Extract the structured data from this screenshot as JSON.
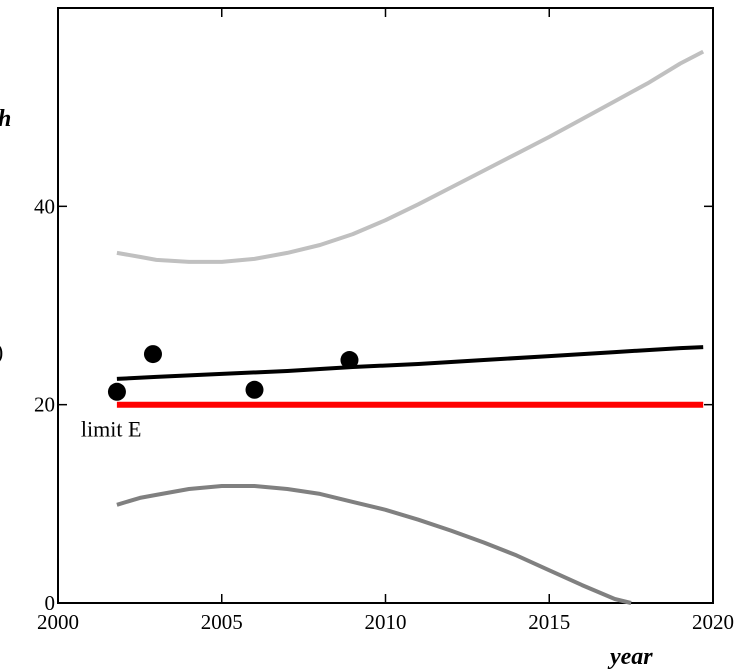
{
  "chart_data": {
    "type": "line",
    "xlabel": "year",
    "ylabel_fragment": "h",
    "ylabel_fragment2": ")",
    "xlim": [
      2000,
      2020
    ],
    "ylim": [
      0,
      60
    ],
    "x_ticks": [
      "2000",
      "2005",
      "2010",
      "2015",
      "2020"
    ],
    "x_tick_values": [
      2000,
      2005,
      2010,
      2015,
      2020
    ],
    "y_ticks": [
      "0",
      "20",
      "40"
    ],
    "y_tick_values": [
      0,
      20,
      40
    ],
    "grid": false,
    "annotation": "limit E",
    "annotation_at": [
      2000.7,
      16.8
    ],
    "colors": {
      "upper": "#c0c0c0",
      "trend": "#000000",
      "lower": "#808080",
      "limit": "#ff0000",
      "points": "#000000",
      "axes": "#000000"
    },
    "series": [
      {
        "key": "upper",
        "x": [
          2001.8,
          2002.5,
          2003,
          2004,
          2005,
          2006,
          2007,
          2008,
          2009,
          2010,
          2011,
          2012,
          2013,
          2014,
          2015,
          2016,
          2017,
          2018,
          2019,
          2019.7
        ],
        "y": [
          35.3,
          34.9,
          34.6,
          34.4,
          34.4,
          34.7,
          35.3,
          36.1,
          37.2,
          38.6,
          40.2,
          41.9,
          43.6,
          45.3,
          47.0,
          48.8,
          50.6,
          52.4,
          54.4,
          55.6
        ]
      },
      {
        "key": "trend",
        "x": [
          2001.8,
          2003,
          2005,
          2007,
          2009,
          2011,
          2013,
          2015,
          2017,
          2019,
          2019.7
        ],
        "y": [
          22.6,
          22.8,
          23.1,
          23.4,
          23.8,
          24.1,
          24.5,
          24.9,
          25.3,
          25.7,
          25.8
        ]
      },
      {
        "key": "lower",
        "x": [
          2001.8,
          2002.5,
          2003,
          2004,
          2005,
          2006,
          2007,
          2008,
          2009,
          2010,
          2011,
          2012,
          2013,
          2014,
          2015,
          2016,
          2017,
          2017.5
        ],
        "y": [
          9.9,
          10.6,
          10.9,
          11.5,
          11.8,
          11.8,
          11.5,
          11.0,
          10.2,
          9.4,
          8.4,
          7.3,
          6.1,
          4.8,
          3.3,
          1.8,
          0.4,
          0.0
        ]
      },
      {
        "key": "limit",
        "x": [
          2001.8,
          2019.7
        ],
        "y": [
          20.0,
          20.0
        ]
      }
    ],
    "points": [
      {
        "x": 2001.8,
        "y": 21.3
      },
      {
        "x": 2002.9,
        "y": 25.1
      },
      {
        "x": 2006.0,
        "y": 21.5
      },
      {
        "x": 2008.9,
        "y": 24.5
      }
    ]
  }
}
